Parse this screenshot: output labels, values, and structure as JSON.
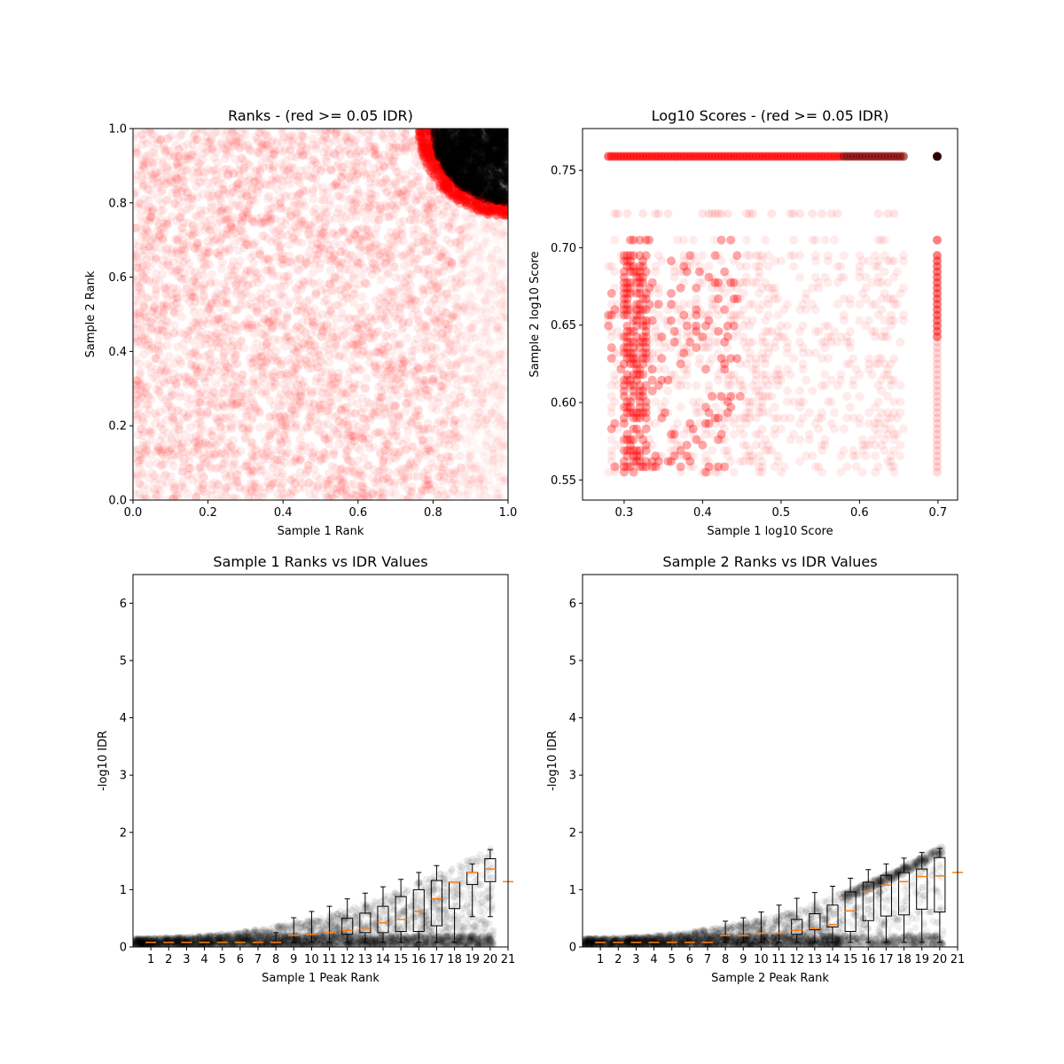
{
  "chart_data": [
    {
      "type": "scatter",
      "title": "Ranks - (red >= 0.05 IDR)",
      "xlabel": "Sample 1 Rank",
      "ylabel": "Sample 2 Rank",
      "xlim": [
        0,
        1
      ],
      "ylim": [
        0,
        1
      ],
      "xticks": [
        0.0,
        0.2,
        0.4,
        0.6,
        0.8,
        1.0
      ],
      "yticks": [
        0.0,
        0.2,
        0.4,
        0.6,
        0.8,
        1.0
      ],
      "xtick_labels": [
        "0.0",
        "0.2",
        "0.4",
        "0.6",
        "0.8",
        "1.0"
      ],
      "ytick_labels": [
        "0.0",
        "0.2",
        "0.4",
        "0.6",
        "0.8",
        "1.0"
      ],
      "colors": {
        "pass": "#000000",
        "fail": "#ff0000"
      },
      "grid": false
    },
    {
      "type": "scatter",
      "title": "Log10 Scores - (red >= 0.05 IDR)",
      "xlabel": "Sample 1 log10 Score",
      "ylabel": "Sample 2 log10 Score",
      "xlim": [
        0.247,
        0.725
      ],
      "ylim": [
        0.537,
        0.777
      ],
      "xticks": [
        0.3,
        0.4,
        0.5,
        0.6,
        0.7
      ],
      "yticks": [
        0.55,
        0.6,
        0.65,
        0.7,
        0.75
      ],
      "xtick_labels": [
        "0.3",
        "0.4",
        "0.5",
        "0.6",
        "0.7"
      ],
      "ytick_labels": [
        "0.55",
        "0.60",
        "0.65",
        "0.70",
        "0.75"
      ],
      "colors": {
        "pass": "#000000",
        "fail": "#ff0000"
      },
      "grid": false
    },
    {
      "type": "box",
      "title": "Sample 1 Ranks vs IDR Values",
      "xlabel": "Sample 1 Peak Rank",
      "ylabel": "-log10 IDR",
      "xlim": [
        0,
        21
      ],
      "ylim": [
        0,
        6.5
      ],
      "yticks": [
        0,
        1,
        2,
        3,
        4,
        5,
        6
      ],
      "ytick_labels": [
        "0",
        "1",
        "2",
        "3",
        "4",
        "5",
        "6"
      ],
      "categories": [
        "1",
        "2",
        "3",
        "4",
        "5",
        "6",
        "7",
        "8",
        "9",
        "10",
        "11",
        "12",
        "13",
        "14",
        "15",
        "16",
        "17",
        "18",
        "19",
        "20",
        "21"
      ],
      "median": [
        0.08,
        0.08,
        0.08,
        0.08,
        0.08,
        0.08,
        0.08,
        0.08,
        0.205,
        0.22,
        0.25,
        0.29,
        0.33,
        0.42,
        0.48,
        0.62,
        0.84,
        1.13,
        1.3,
        1.36,
        1.14
      ],
      "q1": [
        0.08,
        0.08,
        0.08,
        0.08,
        0.08,
        0.08,
        0.08,
        0.08,
        0.205,
        0.22,
        0.25,
        0.22,
        0.25,
        0.25,
        0.27,
        0.27,
        0.37,
        0.67,
        1.09,
        1.14,
        1.14
      ],
      "q3": [
        0.08,
        0.08,
        0.08,
        0.08,
        0.08,
        0.08,
        0.08,
        0.08,
        0.205,
        0.22,
        0.25,
        0.5,
        0.59,
        0.71,
        0.88,
        1.0,
        1.16,
        1.13,
        1.3,
        1.54,
        1.14
      ],
      "whisker_low": [
        0.08,
        0.08,
        0.08,
        0.08,
        0.08,
        0.08,
        0.08,
        0.08,
        0.08,
        0.08,
        0.08,
        0.08,
        0.08,
        0.08,
        0.08,
        0.08,
        0.08,
        0.08,
        0.53,
        0.53,
        1.14
      ],
      "whisker_high": [
        0.08,
        0.08,
        0.08,
        0.08,
        0.08,
        0.08,
        0.08,
        0.25,
        0.51,
        0.62,
        0.71,
        0.84,
        0.94,
        1.05,
        1.18,
        1.3,
        1.42,
        1.13,
        1.45,
        1.7,
        1.14
      ],
      "colors": {
        "points": "#000000",
        "median": "#ff7f0e",
        "box": "#000000"
      }
    },
    {
      "type": "box",
      "title": "Sample 2 Ranks vs IDR Values",
      "xlabel": "Sample 2 Peak Rank",
      "ylabel": "-log10 IDR",
      "xlim": [
        0,
        21
      ],
      "ylim": [
        0,
        6.5
      ],
      "yticks": [
        0,
        1,
        2,
        3,
        4,
        5,
        6
      ],
      "ytick_labels": [
        "0",
        "1",
        "2",
        "3",
        "4",
        "5",
        "6"
      ],
      "categories": [
        "1",
        "2",
        "3",
        "4",
        "5",
        "6",
        "7",
        "8",
        "9",
        "10",
        "11",
        "12",
        "13",
        "14",
        "15",
        "16",
        "17",
        "18",
        "19",
        "20",
        "21"
      ],
      "median": [
        0.08,
        0.08,
        0.08,
        0.08,
        0.08,
        0.08,
        0.08,
        0.2,
        0.2,
        0.24,
        0.24,
        0.29,
        0.32,
        0.39,
        0.63,
        0.97,
        1.08,
        1.14,
        1.23,
        1.24,
        1.3
      ],
      "q1": [
        0.08,
        0.08,
        0.08,
        0.08,
        0.08,
        0.08,
        0.08,
        0.2,
        0.2,
        0.24,
        0.24,
        0.22,
        0.3,
        0.35,
        0.27,
        0.46,
        0.54,
        0.56,
        0.66,
        0.61,
        1.3
      ],
      "q3": [
        0.08,
        0.08,
        0.08,
        0.08,
        0.08,
        0.08,
        0.08,
        0.2,
        0.2,
        0.24,
        0.24,
        0.48,
        0.58,
        0.73,
        0.96,
        1.13,
        1.25,
        1.3,
        1.36,
        1.56,
        1.3
      ],
      "whisker_low": [
        0.08,
        0.08,
        0.08,
        0.08,
        0.08,
        0.08,
        0.08,
        0.08,
        0.08,
        0.08,
        0.08,
        0.08,
        0.08,
        0.08,
        0.08,
        0.08,
        0.08,
        0.08,
        0.08,
        0.08,
        1.3
      ],
      "whisker_high": [
        0.08,
        0.08,
        0.08,
        0.08,
        0.08,
        0.08,
        0.08,
        0.45,
        0.51,
        0.61,
        0.73,
        0.85,
        0.95,
        1.06,
        1.2,
        1.35,
        1.45,
        1.55,
        1.65,
        1.72,
        1.3
      ],
      "colors": {
        "points": "#000000",
        "median": "#ff7f0e",
        "box": "#000000"
      }
    }
  ]
}
